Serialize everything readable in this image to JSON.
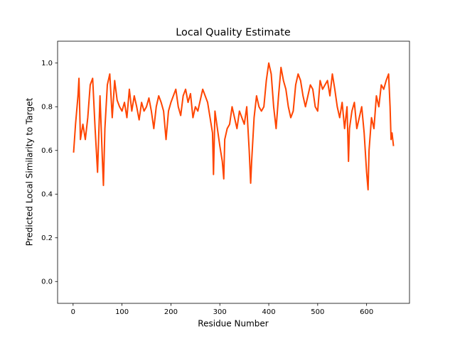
{
  "chart_data": {
    "type": "line",
    "title": "Local Quality Estimate",
    "x_label": "Residue Number",
    "y_label": "Predicted Local Similarity to Target",
    "xlim": [
      -31.7,
      687.7
    ],
    "ylim": [
      -0.1,
      1.1
    ],
    "xticks": [
      0,
      100,
      200,
      300,
      400,
      500,
      600
    ],
    "yticks": [
      {
        "value": 0,
        "label": "0.0"
      },
      0.2,
      0.4,
      0.6,
      0.8,
      {
        "value": 1,
        "label": "1.0"
      }
    ],
    "grid": false,
    "x": [
      1,
      5,
      10,
      12,
      15,
      20,
      25,
      30,
      35,
      40,
      45,
      50,
      55,
      60,
      62,
      65,
      70,
      75,
      80,
      85,
      90,
      95,
      100,
      105,
      110,
      115,
      120,
      125,
      130,
      135,
      140,
      145,
      150,
      155,
      160,
      165,
      170,
      175,
      180,
      185,
      190,
      195,
      200,
      205,
      210,
      215,
      220,
      225,
      230,
      235,
      240,
      245,
      250,
      255,
      260,
      265,
      270,
      275,
      280,
      285,
      287,
      290,
      295,
      300,
      305,
      308,
      310,
      315,
      320,
      325,
      330,
      335,
      340,
      345,
      350,
      355,
      360,
      363,
      365,
      370,
      375,
      380,
      385,
      390,
      395,
      400,
      405,
      410,
      415,
      420,
      425,
      430,
      435,
      440,
      445,
      450,
      455,
      460,
      465,
      470,
      475,
      480,
      485,
      490,
      495,
      500,
      505,
      510,
      515,
      520,
      525,
      530,
      535,
      540,
      545,
      550,
      555,
      560,
      563,
      565,
      570,
      575,
      580,
      585,
      590,
      595,
      600,
      603,
      605,
      610,
      615,
      620,
      625,
      630,
      635,
      640,
      645,
      648,
      650,
      652,
      655
    ],
    "series": [
      {
        "name": "Local Quality",
        "color": "#ff4500",
        "values": [
          0.59,
          0.72,
          0.85,
          0.93,
          0.65,
          0.72,
          0.65,
          0.75,
          0.9,
          0.93,
          0.7,
          0.5,
          0.85,
          0.55,
          0.44,
          0.7,
          0.9,
          0.95,
          0.75,
          0.92,
          0.83,
          0.8,
          0.78,
          0.82,
          0.75,
          0.88,
          0.78,
          0.85,
          0.8,
          0.74,
          0.82,
          0.78,
          0.8,
          0.84,
          0.78,
          0.7,
          0.8,
          0.85,
          0.82,
          0.78,
          0.65,
          0.78,
          0.82,
          0.85,
          0.88,
          0.8,
          0.76,
          0.85,
          0.88,
          0.82,
          0.86,
          0.75,
          0.8,
          0.78,
          0.83,
          0.88,
          0.85,
          0.82,
          0.75,
          0.68,
          0.49,
          0.78,
          0.7,
          0.62,
          0.55,
          0.47,
          0.65,
          0.7,
          0.72,
          0.8,
          0.75,
          0.7,
          0.78,
          0.75,
          0.72,
          0.8,
          0.6,
          0.45,
          0.55,
          0.75,
          0.85,
          0.8,
          0.78,
          0.8,
          0.92,
          1.0,
          0.95,
          0.8,
          0.7,
          0.85,
          0.98,
          0.92,
          0.88,
          0.8,
          0.75,
          0.78,
          0.9,
          0.95,
          0.92,
          0.85,
          0.8,
          0.85,
          0.9,
          0.88,
          0.8,
          0.78,
          0.92,
          0.88,
          0.9,
          0.92,
          0.85,
          0.95,
          0.88,
          0.8,
          0.75,
          0.82,
          0.7,
          0.8,
          0.55,
          0.7,
          0.78,
          0.82,
          0.7,
          0.75,
          0.8,
          0.68,
          0.5,
          0.42,
          0.6,
          0.75,
          0.7,
          0.85,
          0.8,
          0.9,
          0.88,
          0.92,
          0.95,
          0.8,
          0.65,
          0.68,
          0.62
        ]
      }
    ]
  }
}
